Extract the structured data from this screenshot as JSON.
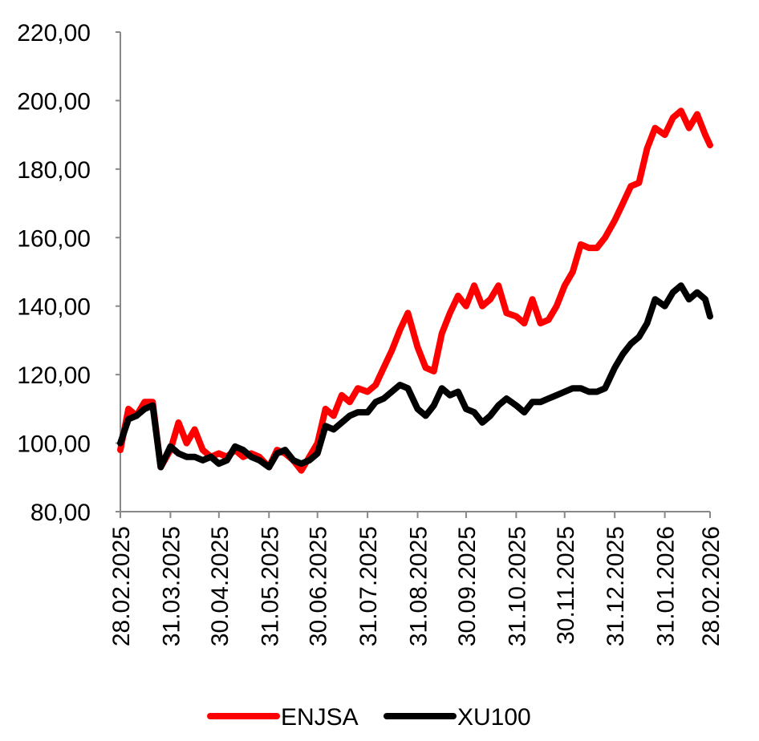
{
  "chart_data": {
    "type": "line",
    "title": "",
    "xlabel": "",
    "ylabel": "",
    "ylim": [
      80,
      220
    ],
    "y_ticks": [
      "80,00",
      "100,00",
      "120,00",
      "140,00",
      "160,00",
      "180,00",
      "200,00",
      "220,00"
    ],
    "x_ticks": [
      "28.02.2025",
      "31.03.2025",
      "30.04.2025",
      "31.05.2025",
      "30.06.2025",
      "31.07.2025",
      "31.08.2025",
      "30.09.2025",
      "31.10.2025",
      "30.11.2025",
      "31.12.2025",
      "31.01.2026",
      "28.02.2026"
    ],
    "x": [
      "2025-02-28",
      "2025-03-05",
      "2025-03-10",
      "2025-03-15",
      "2025-03-20",
      "2025-03-25",
      "2025-03-31",
      "2025-04-05",
      "2025-04-10",
      "2025-04-15",
      "2025-04-20",
      "2025-04-25",
      "2025-04-30",
      "2025-05-05",
      "2025-05-10",
      "2025-05-15",
      "2025-05-20",
      "2025-05-25",
      "2025-05-31",
      "2025-06-05",
      "2025-06-10",
      "2025-06-15",
      "2025-06-20",
      "2025-06-25",
      "2025-06-30",
      "2025-07-05",
      "2025-07-10",
      "2025-07-15",
      "2025-07-20",
      "2025-07-25",
      "2025-07-31",
      "2025-08-05",
      "2025-08-10",
      "2025-08-15",
      "2025-08-20",
      "2025-08-25",
      "2025-08-31",
      "2025-09-05",
      "2025-09-10",
      "2025-09-15",
      "2025-09-20",
      "2025-09-25",
      "2025-09-30",
      "2025-10-05",
      "2025-10-10",
      "2025-10-15",
      "2025-10-20",
      "2025-10-25",
      "2025-10-31",
      "2025-11-05",
      "2025-11-10",
      "2025-11-15",
      "2025-11-20",
      "2025-11-25",
      "2025-11-30",
      "2025-12-05",
      "2025-12-10",
      "2025-12-15",
      "2025-12-20",
      "2025-12-25",
      "2025-12-31",
      "2026-01-05",
      "2026-01-10",
      "2026-01-15",
      "2026-01-20",
      "2026-01-25",
      "2026-01-31",
      "2026-02-05",
      "2026-02-10",
      "2026-02-15",
      "2026-02-20",
      "2026-02-25",
      "2026-02-28"
    ],
    "legend_position": "bottom",
    "grid": false,
    "series": [
      {
        "name": "ENJSA",
        "color": "#ff0000",
        "values": [
          98,
          110,
          108,
          112,
          112,
          93,
          98,
          106,
          100,
          104,
          98,
          96,
          97,
          96,
          98,
          96,
          97,
          96,
          93,
          98,
          97,
          95,
          92,
          96,
          100,
          110,
          108,
          114,
          112,
          116,
          115,
          117,
          122,
          127,
          133,
          138,
          128,
          122,
          121,
          132,
          138,
          143,
          140,
          146,
          140,
          142,
          146,
          138,
          137,
          135,
          142,
          135,
          136,
          140,
          146,
          150,
          158,
          157,
          157,
          160,
          165,
          170,
          175,
          176,
          186,
          192,
          190,
          195,
          197,
          192,
          196,
          190,
          187
        ],
        "line_width": 8
      },
      {
        "name": "XU100",
        "color": "#000000",
        "values": [
          100,
          107,
          108,
          110,
          111,
          93,
          99,
          97,
          96,
          96,
          95,
          96,
          94,
          95,
          99,
          98,
          96,
          95,
          93,
          97,
          98,
          95,
          94,
          95,
          97,
          105,
          104,
          106,
          108,
          109,
          109,
          112,
          113,
          115,
          117,
          116,
          110,
          108,
          111,
          116,
          114,
          115,
          110,
          109,
          106,
          108,
          111,
          113,
          111,
          109,
          112,
          112,
          113,
          114,
          115,
          116,
          116,
          115,
          115,
          116,
          122,
          126,
          129,
          131,
          135,
          142,
          140,
          144,
          146,
          142,
          144,
          142,
          137
        ],
        "line_width": 8
      }
    ]
  }
}
